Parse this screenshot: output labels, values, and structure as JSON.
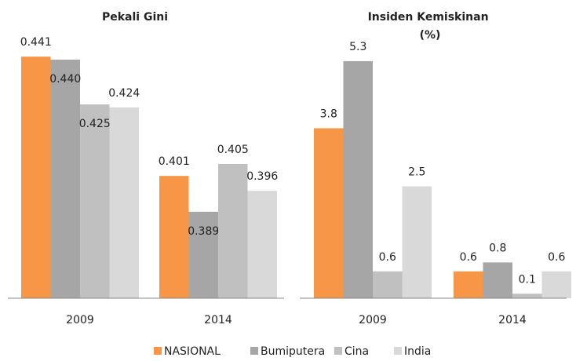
{
  "chart_data": [
    {
      "type": "bar",
      "title": "Pekali Gini",
      "categories": [
        "2009",
        "2014"
      ],
      "ylim": [
        0.36,
        0.45
      ],
      "series": [
        {
          "name": "NASIONAL",
          "color": "#f79646",
          "values": [
            0.441,
            0.401
          ],
          "value_labels": [
            "0.441",
            "0.401"
          ]
        },
        {
          "name": "Bumiputera",
          "color": "#a6a6a6",
          "values": [
            0.44,
            0.389
          ],
          "value_labels": [
            "0.440",
            "0.389"
          ]
        },
        {
          "name": "Cina",
          "color": "#c0c0c0",
          "values": [
            0.425,
            0.405
          ],
          "value_labels": [
            "0.425",
            "0.405"
          ]
        },
        {
          "name": "India",
          "color": "#d9d9d9",
          "values": [
            0.424,
            0.396
          ],
          "value_labels": [
            "0.424",
            "0.396"
          ]
        }
      ]
    },
    {
      "type": "bar",
      "title": "Insiden Kemiskinan (%)",
      "categories": [
        "2009",
        "2014"
      ],
      "ylim": [
        0,
        6
      ],
      "series": [
        {
          "name": "NASIONAL",
          "color": "#f79646",
          "values": [
            3.8,
            0.6
          ]
        },
        {
          "name": "Bumiputera",
          "color": "#a6a6a6",
          "values": [
            5.3,
            0.8
          ]
        },
        {
          "name": "Cina",
          "color": "#c0c0c0",
          "values": [
            0.6,
            0.1
          ]
        },
        {
          "name": "India",
          "color": "#d9d9d9",
          "values": [
            2.5,
            0.6
          ]
        }
      ]
    }
  ]
}
